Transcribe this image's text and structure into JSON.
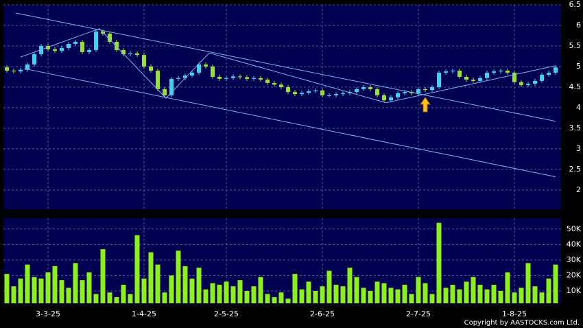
{
  "chart_data": {
    "type": "candlestick",
    "copyright": "Copyright by AASTOCKS.com Ltd.",
    "categories": [
      null,
      null,
      null,
      null,
      null,
      null,
      "3-3-25",
      null,
      null,
      null,
      null,
      null,
      null,
      null,
      null,
      null,
      null,
      null,
      null,
      null,
      "1-4-25",
      null,
      null,
      null,
      null,
      null,
      null,
      null,
      null,
      null,
      null,
      null,
      "2-5-25",
      null,
      null,
      null,
      null,
      null,
      null,
      null,
      null,
      null,
      null,
      null,
      null,
      null,
      "2-6-25",
      null,
      null,
      null,
      null,
      null,
      null,
      null,
      null,
      null,
      null,
      null,
      null,
      null,
      "2-7-25",
      null,
      null,
      null,
      null,
      null,
      null,
      null,
      null,
      null,
      null,
      null,
      null,
      null,
      "1-8-25",
      null,
      null,
      null,
      null,
      null,
      null
    ],
    "open": [
      4.98,
      4.9,
      4.88,
      4.92,
      5.05,
      5.3,
      5.5,
      5.42,
      5.38,
      5.45,
      5.55,
      5.6,
      5.35,
      5.4,
      5.85,
      5.8,
      5.6,
      5.4,
      5.3,
      5.32,
      5.28,
      5.0,
      4.9,
      4.45,
      4.3,
      4.7,
      4.72,
      4.78,
      4.85,
      5.05,
      5.0,
      4.75,
      4.7,
      4.72,
      4.76,
      4.74,
      4.7,
      4.72,
      4.68,
      4.6,
      4.56,
      4.5,
      4.38,
      4.33,
      4.36,
      4.4,
      4.42,
      4.3,
      4.3,
      4.33,
      4.35,
      4.38,
      4.45,
      4.5,
      4.45,
      4.3,
      4.18,
      4.25,
      4.35,
      4.38,
      4.35,
      4.45,
      4.43,
      4.5,
      4.85,
      4.88,
      4.9,
      4.75,
      4.68,
      4.65,
      4.72,
      4.85,
      4.88,
      4.9,
      4.85,
      4.62,
      4.55,
      4.58,
      4.65,
      4.8,
      4.85
    ],
    "high": [
      5.03,
      4.95,
      4.97,
      5.1,
      5.35,
      5.55,
      5.55,
      5.47,
      5.5,
      5.6,
      5.65,
      5.65,
      5.45,
      5.9,
      5.9,
      5.85,
      5.65,
      5.45,
      5.37,
      5.37,
      5.33,
      5.05,
      4.95,
      4.5,
      4.75,
      4.77,
      4.83,
      4.9,
      5.1,
      5.1,
      5.05,
      4.8,
      4.77,
      4.81,
      4.81,
      4.79,
      4.77,
      4.77,
      4.73,
      4.65,
      4.61,
      4.55,
      4.43,
      4.41,
      4.45,
      4.47,
      4.47,
      4.35,
      4.38,
      4.4,
      4.43,
      4.5,
      4.55,
      4.55,
      4.5,
      4.35,
      4.3,
      4.4,
      4.43,
      4.43,
      4.5,
      4.5,
      4.55,
      4.9,
      4.93,
      4.95,
      4.95,
      4.8,
      4.73,
      4.77,
      4.9,
      4.93,
      4.95,
      4.95,
      4.9,
      4.67,
      4.63,
      4.7,
      4.85,
      4.9,
      5.03
    ],
    "low": [
      4.85,
      4.83,
      4.83,
      4.87,
      5.0,
      5.25,
      5.37,
      5.33,
      5.33,
      5.4,
      5.5,
      5.3,
      5.3,
      5.35,
      5.75,
      5.55,
      5.35,
      5.25,
      5.25,
      5.23,
      4.95,
      4.85,
      4.4,
      4.25,
      4.25,
      4.65,
      4.67,
      4.73,
      4.8,
      4.95,
      4.7,
      4.65,
      4.65,
      4.67,
      4.69,
      4.65,
      4.65,
      4.63,
      4.55,
      4.51,
      4.45,
      4.33,
      4.28,
      4.28,
      4.31,
      4.35,
      4.25,
      4.25,
      4.25,
      4.28,
      4.3,
      4.33,
      4.4,
      4.4,
      4.25,
      4.13,
      4.13,
      4.2,
      4.3,
      4.3,
      4.3,
      4.38,
      4.38,
      4.45,
      4.8,
      4.83,
      4.7,
      4.63,
      4.6,
      4.6,
      4.67,
      4.8,
      4.83,
      4.8,
      4.57,
      4.5,
      4.5,
      4.53,
      4.6,
      4.75,
      4.8
    ],
    "close": [
      4.9,
      4.88,
      4.92,
      5.05,
      5.3,
      5.5,
      5.42,
      5.38,
      5.45,
      5.55,
      5.6,
      5.35,
      5.4,
      5.85,
      5.8,
      5.6,
      5.4,
      5.3,
      5.32,
      5.28,
      5.0,
      4.9,
      4.45,
      4.3,
      4.7,
      4.72,
      4.78,
      4.85,
      5.05,
      5.0,
      4.75,
      4.7,
      4.72,
      4.76,
      4.74,
      4.7,
      4.72,
      4.68,
      4.6,
      4.56,
      4.5,
      4.38,
      4.33,
      4.36,
      4.4,
      4.42,
      4.3,
      4.3,
      4.33,
      4.35,
      4.38,
      4.45,
      4.5,
      4.45,
      4.3,
      4.18,
      4.25,
      4.35,
      4.38,
      4.35,
      4.45,
      4.43,
      4.5,
      4.85,
      4.88,
      4.9,
      4.75,
      4.68,
      4.65,
      4.72,
      4.85,
      4.88,
      4.9,
      4.85,
      4.62,
      4.55,
      4.58,
      4.65,
      4.8,
      4.85,
      4.98
    ],
    "volume": [
      21000,
      13000,
      18000,
      27000,
      19000,
      18000,
      22000,
      26000,
      17000,
      12000,
      28000,
      17000,
      22000,
      8000,
      37000,
      9000,
      6000,
      14000,
      8000,
      46000,
      18000,
      35000,
      27000,
      9000,
      20000,
      36000,
      26000,
      18000,
      25000,
      11000,
      15000,
      14000,
      16000,
      13000,
      17000,
      10000,
      13000,
      19000,
      8000,
      6000,
      9000,
      5000,
      21000,
      11000,
      16000,
      10000,
      13000,
      23000,
      14000,
      13000,
      25000,
      19000,
      12000,
      10000,
      16000,
      15000,
      12000,
      11000,
      14000,
      8000,
      19000,
      15000,
      8000,
      54000,
      12000,
      14000,
      11000,
      16000,
      19000,
      14000,
      11000,
      14000,
      10000,
      22000,
      9000,
      12000,
      28000,
      13000,
      9000,
      18000,
      27000
    ],
    "up_color": "#40d0f0",
    "down_color": "#99e033",
    "volume_color": "#8cf01e",
    "ylim": [
      1.53,
      6.5
    ],
    "yticks": [
      2,
      2.5,
      3,
      3.5,
      4,
      4.5,
      5,
      5.5,
      6,
      6.5
    ],
    "volume_ylim": [
      2000,
      57000
    ],
    "volume_ticks": [
      {
        "value": 10000,
        "label": "10K"
      },
      {
        "value": 20000,
        "label": "20K"
      },
      {
        "value": 30000,
        "label": "30K"
      },
      {
        "value": 40000,
        "label": "40K"
      },
      {
        "value": 50000,
        "label": "50K"
      }
    ],
    "grid": true,
    "trendline_color": "#7ab8f0",
    "trendlines": [
      {
        "x": [
          1.3,
          80
        ],
        "y": [
          6.3,
          3.67
        ]
      },
      {
        "x": [
          2.5,
          80
        ],
        "y": [
          4.95,
          2.32
        ]
      },
      {
        "x": [
          2,
          13.5,
          23.2,
          29.5,
          55.3,
          80
        ],
        "y": [
          5.23,
          5.92,
          4.23,
          5.33,
          4.12,
          5.02
        ]
      }
    ]
  }
}
